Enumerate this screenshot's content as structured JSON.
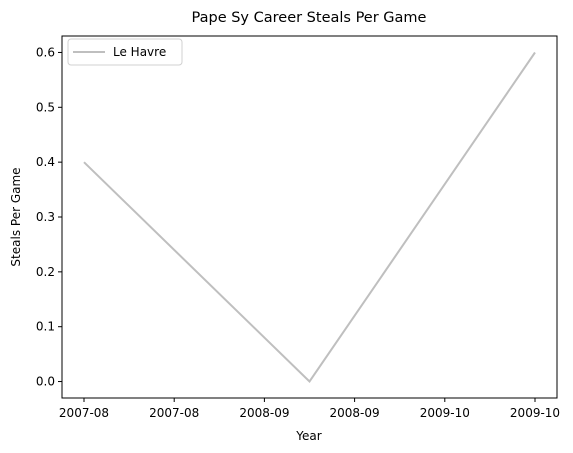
{
  "chart_data": {
    "type": "line",
    "title": "Pape Sy Career Steals Per Game",
    "xlabel": "Year",
    "ylabel": "Steals Per Game",
    "x": [
      "2007-08",
      "2008-09",
      "2009-10"
    ],
    "x_tick_labels": [
      "2007-08",
      "2007-08",
      "2008-09",
      "2008-09",
      "2009-10",
      "2009-10"
    ],
    "series": [
      {
        "name": "Le Havre",
        "values": [
          0.4,
          0.0,
          0.6
        ],
        "color": "#bfbfbf"
      }
    ],
    "ylim": [
      -0.03,
      0.63
    ],
    "y_ticks": [
      0.0,
      0.1,
      0.2,
      0.3,
      0.4,
      0.5,
      0.6
    ],
    "y_tick_labels": [
      "0.0",
      "0.1",
      "0.2",
      "0.3",
      "0.4",
      "0.5",
      "0.6"
    ],
    "grid": false,
    "legend": "top-left"
  }
}
